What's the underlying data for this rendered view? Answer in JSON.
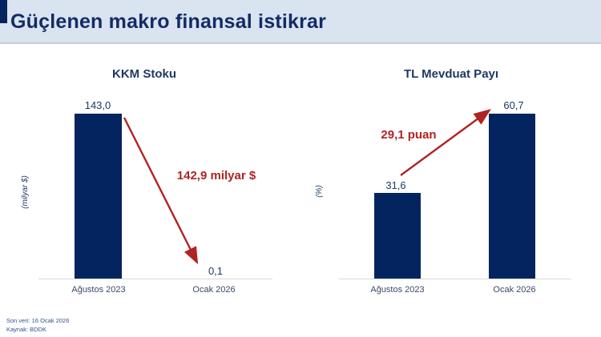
{
  "header": {
    "title": "Güçlenen makro finansal istikrar"
  },
  "footer": {
    "last_data_label": "Son veri: 16 Ocak 2026",
    "source_label": "Kaynak: BDDK"
  },
  "colors": {
    "accent_navy": "#03245f",
    "title_navy": "#122c64",
    "header_background": "#dae3f0",
    "bar_navy": "#03245f",
    "arrow_red": "#b02422",
    "baseline_gray": "#d9d9d9"
  },
  "chart_data": [
    {
      "type": "bar",
      "title": "KKM Stoku",
      "ylabel": "(milyar $)",
      "xlabel": "",
      "categories": [
        "Ağustos 2023",
        "Ocak 2026"
      ],
      "values": [
        143.0,
        0.1
      ],
      "value_labels": [
        "143,0",
        "0,1"
      ],
      "bar_color": "#03245f",
      "ylim": [
        0,
        150
      ],
      "grid": false,
      "legend_position": "none",
      "annotation": {
        "text": "142,9 milyar $",
        "direction": "decrease",
        "color": "#b02422"
      }
    },
    {
      "type": "bar",
      "title": "TL Mevduat Payı",
      "ylabel": "(%)",
      "xlabel": "",
      "categories": [
        "Ağustos 2023",
        "Ocak 2026"
      ],
      "values": [
        31.6,
        60.7
      ],
      "value_labels": [
        "31,6",
        "60,7"
      ],
      "bar_color": "#03245f",
      "ylim": [
        0,
        65
      ],
      "grid": false,
      "legend_position": "none",
      "annotation": {
        "text": "29,1 puan",
        "direction": "increase",
        "color": "#b02422"
      }
    }
  ]
}
